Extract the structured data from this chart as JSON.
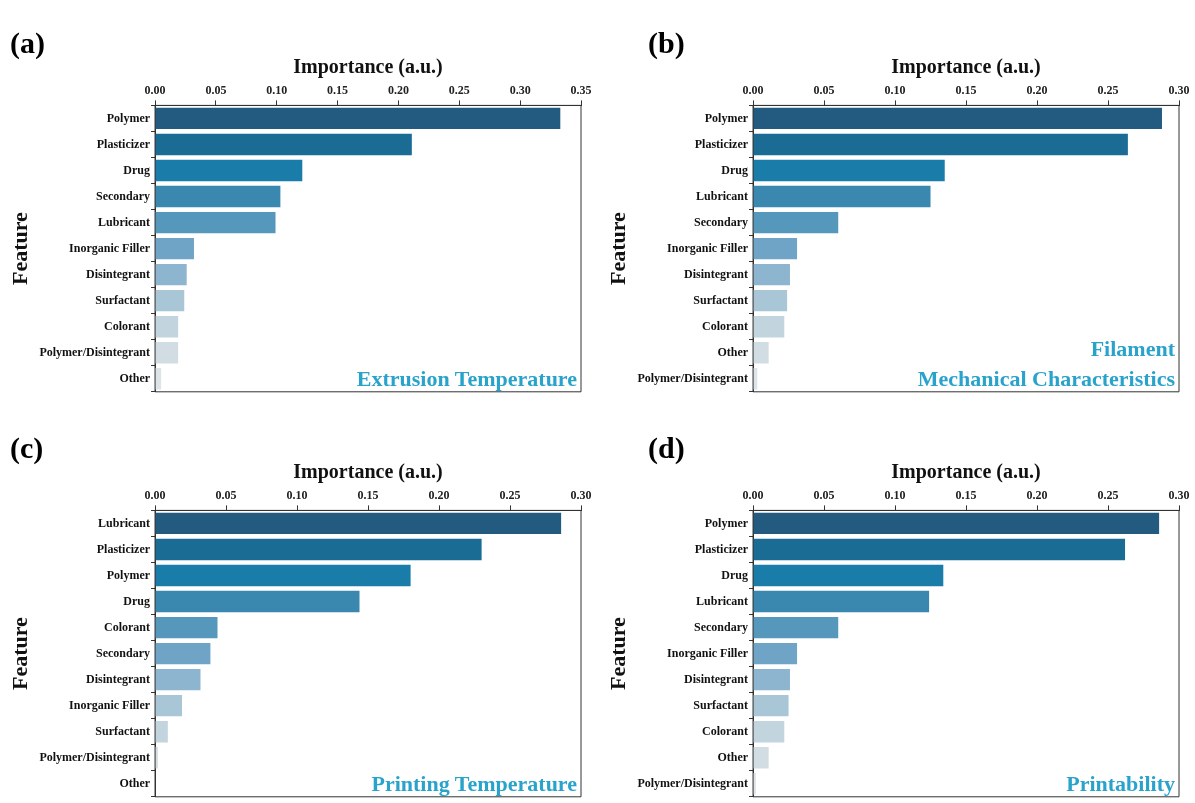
{
  "chart_data": [
    {
      "type": "bar",
      "orientation": "horizontal",
      "title": "Extrusion Temperature",
      "annotations": [
        "(a)"
      ],
      "xlabel": "Importance (a.u.)",
      "ylabel": "Feature",
      "grid": false,
      "legend": false,
      "categories": [
        "Polymer",
        "Plasticizer",
        "Drug",
        "Secondary",
        "Lubricant",
        "Inorganic Filler",
        "Disintegrant",
        "Surfactant",
        "Colorant",
        "Polymer/Disintegrant",
        "Other"
      ],
      "values": [
        0.333,
        0.211,
        0.121,
        0.103,
        0.099,
        0.032,
        0.026,
        0.024,
        0.019,
        0.019,
        0.005
      ],
      "colors": [
        "#235b80",
        "#1a6c94",
        "#1a7ca8",
        "#3a88b0",
        "#5698bb",
        "#70a4c6",
        "#8db5d0",
        "#a8c6d6",
        "#c2d4de",
        "#d2dde3",
        "#dde4e8"
      ],
      "xlim": [
        0,
        0.35
      ],
      "xticks": [
        {
          "value": 0,
          "label": "0.00"
        },
        {
          "value": 0.05,
          "label": "0.05"
        },
        {
          "value": 0.1,
          "label": "0.10"
        },
        {
          "value": 0.15,
          "label": "0.15"
        },
        {
          "value": 0.2,
          "label": "0.20"
        },
        {
          "value": 0.25,
          "label": "0.25"
        },
        {
          "value": 0.3,
          "label": "0.30"
        },
        {
          "value": 0.35,
          "label": "0.35"
        }
      ]
    },
    {
      "type": "bar",
      "orientation": "horizontal",
      "title": "Filament\nMechanical Characteristics",
      "annotations": [
        "(b)"
      ],
      "xlabel": "Importance (a.u.)",
      "ylabel": "Feature",
      "grid": false,
      "legend": false,
      "categories": [
        "Polymer",
        "Plasticizer",
        "Drug",
        "Lubricant",
        "Secondary",
        "Inorganic Filler",
        "Disintegrant",
        "Surfactant",
        "Colorant",
        "Other",
        "Polymer/Disintegrant"
      ],
      "values": [
        0.288,
        0.264,
        0.135,
        0.125,
        0.06,
        0.031,
        0.026,
        0.024,
        0.022,
        0.011,
        0.003
      ],
      "colors": [
        "#235b80",
        "#1a6c94",
        "#1a7ca8",
        "#3a88b0",
        "#5698bb",
        "#70a4c6",
        "#8db5d0",
        "#a8c6d6",
        "#c2d4de",
        "#d2dde3",
        "#dde4e8"
      ],
      "xlim": [
        0,
        0.3
      ],
      "xticks": [
        {
          "value": 0,
          "label": "0.00"
        },
        {
          "value": 0.05,
          "label": "0.05"
        },
        {
          "value": 0.1,
          "label": "0.10"
        },
        {
          "value": 0.15,
          "label": "0.15"
        },
        {
          "value": 0.2,
          "label": "0.20"
        },
        {
          "value": 0.25,
          "label": "0.25"
        },
        {
          "value": 0.3,
          "label": "0.30"
        }
      ]
    },
    {
      "type": "bar",
      "orientation": "horizontal",
      "title": "Printing Temperature",
      "annotations": [
        "(c)"
      ],
      "xlabel": "Importance (a.u.)",
      "ylabel": "Feature",
      "grid": false,
      "legend": false,
      "categories": [
        "Lubricant",
        "Plasticizer",
        "Polymer",
        "Drug",
        "Colorant",
        "Secondary",
        "Disintegrant",
        "Inorganic Filler",
        "Surfactant",
        "Polymer/Disintegrant",
        "Other"
      ],
      "values": [
        0.286,
        0.23,
        0.18,
        0.144,
        0.044,
        0.039,
        0.032,
        0.019,
        0.009,
        0.002,
        null
      ],
      "colors": [
        "#235b80",
        "#1a6c94",
        "#1a7ca8",
        "#3a88b0",
        "#5698bb",
        "#70a4c6",
        "#8db5d0",
        "#a8c6d6",
        "#c2d4de",
        "#d2dde3",
        "#dde4e8"
      ],
      "xlim": [
        0,
        0.3
      ],
      "xticks": [
        {
          "value": 0,
          "label": "0.00"
        },
        {
          "value": 0.05,
          "label": "0.05"
        },
        {
          "value": 0.1,
          "label": "0.10"
        },
        {
          "value": 0.15,
          "label": "0.15"
        },
        {
          "value": 0.2,
          "label": "0.20"
        },
        {
          "value": 0.25,
          "label": "0.25"
        },
        {
          "value": 0.3,
          "label": "0.30"
        }
      ]
    },
    {
      "type": "bar",
      "orientation": "horizontal",
      "title": "Printability",
      "annotations": [
        "(d)"
      ],
      "xlabel": "Importance (a.u.)",
      "ylabel": "Feature",
      "grid": false,
      "legend": false,
      "categories": [
        "Polymer",
        "Plasticizer",
        "Drug",
        "Lubricant",
        "Secondary",
        "Inorganic Filler",
        "Disintegrant",
        "Surfactant",
        "Colorant",
        "Other",
        "Polymer/Disintegrant"
      ],
      "values": [
        0.286,
        0.262,
        0.134,
        0.124,
        0.06,
        0.031,
        0.026,
        0.025,
        0.022,
        0.011,
        0.002
      ],
      "colors": [
        "#235b80",
        "#1a6c94",
        "#1a7ca8",
        "#3a88b0",
        "#5698bb",
        "#70a4c6",
        "#8db5d0",
        "#a8c6d6",
        "#c2d4de",
        "#d2dde3",
        "#dde4e8"
      ],
      "xlim": [
        0,
        0.3
      ],
      "xticks": [
        {
          "value": 0,
          "label": "0.00"
        },
        {
          "value": 0.05,
          "label": "0.05"
        },
        {
          "value": 0.1,
          "label": "0.10"
        },
        {
          "value": 0.15,
          "label": "0.15"
        },
        {
          "value": 0.2,
          "label": "0.20"
        },
        {
          "value": 0.25,
          "label": "0.25"
        },
        {
          "value": 0.3,
          "label": "0.30"
        }
      ]
    }
  ]
}
